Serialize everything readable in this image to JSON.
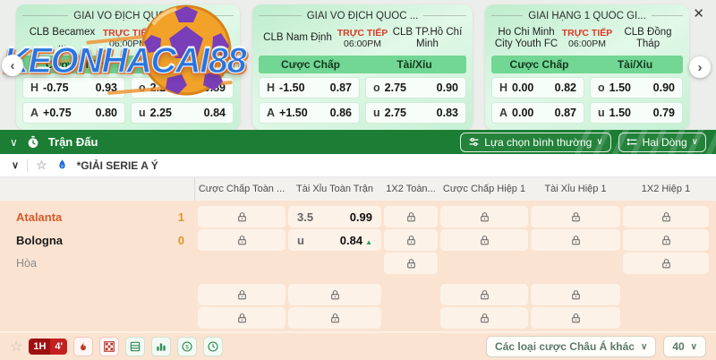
{
  "watermark": {
    "text": "KEONHACAI88"
  },
  "nav": {
    "prev": "‹",
    "next": "›",
    "close": "✕"
  },
  "cards": [
    {
      "title": "GIẢI VÔ ĐỊCH QUỐC...",
      "home": "CLB Becamex ...",
      "away": "Đà ...",
      "live": "TRỰC TIẾP",
      "time": "06:00PM",
      "handicap_header": "Cược Chấp",
      "ou_header": "Tài/Xỉu",
      "rows": [
        {
          "hc_side": "H",
          "hc_line": "-0.75",
          "hc_odds": "0.93",
          "ou_side": "o",
          "ou_line": "2.25",
          "ou_odds": "0.89"
        },
        {
          "hc_side": "A",
          "hc_line": "+0.75",
          "hc_odds": "0.80",
          "ou_side": "u",
          "ou_line": "2.25",
          "ou_odds": "0.84"
        }
      ]
    },
    {
      "title": "GIẢI VÔ ĐỊCH QUỐC ...",
      "home": "CLB Nam Định",
      "away": "CLB TP.Hồ Chí Minh",
      "live": "TRỰC TIẾP",
      "time": "06:00PM",
      "handicap_header": "Cược Chấp",
      "ou_header": "Tài/Xỉu",
      "rows": [
        {
          "hc_side": "H",
          "hc_line": "-1.50",
          "hc_odds": "0.87",
          "ou_side": "o",
          "ou_line": "2.75",
          "ou_odds": "0.90"
        },
        {
          "hc_side": "A",
          "hc_line": "+1.50",
          "hc_odds": "0.86",
          "ou_side": "u",
          "ou_line": "2.75",
          "ou_odds": "0.83"
        }
      ]
    },
    {
      "title": "GIẢI HẠNG 1 QUỐC GI...",
      "home": "Ho Chi Minh City Youth FC",
      "away": "CLB Đồng Tháp",
      "live": "TRỰC TIẾP",
      "time": "06:00PM",
      "handicap_header": "Cược Chấp",
      "ou_header": "Tài/Xỉu",
      "rows": [
        {
          "hc_side": "H",
          "hc_line": "0.00",
          "hc_odds": "0.82",
          "ou_side": "o",
          "ou_line": "1.50",
          "ou_odds": "0.90"
        },
        {
          "hc_side": "A",
          "hc_line": "0.00",
          "hc_odds": "0.87",
          "ou_side": "u",
          "ou_line": "1.50",
          "ou_odds": "0.79"
        }
      ]
    }
  ],
  "toolbar": {
    "title": "Trận Đấu",
    "filter_dropdown": "Lựa chọn bình thường",
    "lines_dropdown": "Hai Dòng"
  },
  "league_row": {
    "name": "*GIẢI SERIE A Ý"
  },
  "table": {
    "columns": [
      "Cược Chấp Toàn ...",
      "Tài Xỉu Toàn Trận",
      "1X2 Toàn...",
      "Cược Chấp Hiệp 1",
      "Tài Xỉu Hiệp 1",
      "1X2 Hiệp 1"
    ],
    "match": {
      "home": "Atalanta",
      "home_score": "1",
      "away": "Bologna",
      "away_score": "0",
      "draw": "Hòa"
    },
    "groups": [
      {
        "rows": [
          {
            "team": "home",
            "cells": [
              {
                "t": "lock"
              },
              {
                "t": "odds",
                "line": "3.5",
                "odds": "0.99"
              },
              {
                "t": "lock"
              },
              {
                "t": "lock"
              },
              {
                "t": "lock"
              },
              {
                "t": "lock"
              }
            ]
          },
          {
            "team": "away",
            "cells": [
              {
                "t": "lock"
              },
              {
                "t": "odds",
                "line": "u",
                "odds": "0.84",
                "trend": "up"
              },
              {
                "t": "lock"
              },
              {
                "t": "lock"
              },
              {
                "t": "lock"
              },
              {
                "t": "lock"
              }
            ]
          },
          {
            "team": "draw",
            "cells": [
              {
                "t": "empty"
              },
              {
                "t": "empty"
              },
              {
                "t": "lock"
              },
              {
                "t": "empty"
              },
              {
                "t": "empty"
              },
              {
                "t": "lock"
              }
            ]
          }
        ]
      },
      {
        "rows": [
          {
            "cells": [
              {
                "t": "lock"
              },
              {
                "t": "lock"
              },
              {
                "t": "empty"
              },
              {
                "t": "lock"
              },
              {
                "t": "lock"
              },
              {
                "t": "empty"
              }
            ]
          },
          {
            "cells": [
              {
                "t": "lock"
              },
              {
                "t": "lock"
              },
              {
                "t": "empty"
              },
              {
                "t": "lock"
              },
              {
                "t": "lock"
              },
              {
                "t": "empty"
              }
            ]
          }
        ]
      }
    ]
  },
  "footer": {
    "match_time_badge": {
      "period": "1H",
      "minute": "4'"
    },
    "icons": [
      "star",
      "fire",
      "checkered-flag",
      "stats-rows",
      "bar-chart",
      "money",
      "history-clock"
    ],
    "bet_types_dropdown": "Các loại cược Châu Á khác",
    "count_dropdown": "40"
  }
}
